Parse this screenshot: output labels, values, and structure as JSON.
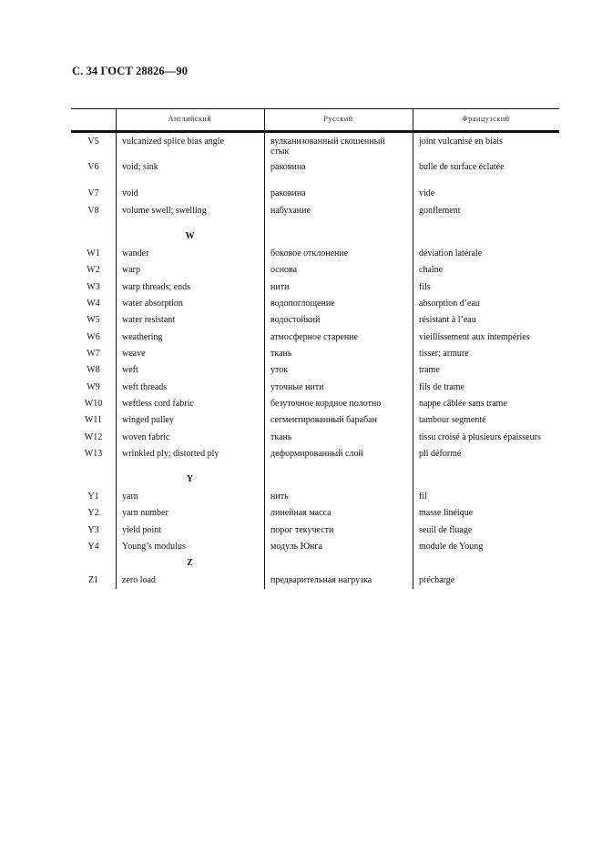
{
  "header": {
    "title": "С. 34 ГОСТ 28826—90"
  },
  "table": {
    "columns": [
      "",
      "Английский",
      "Русский",
      "Французский"
    ],
    "rows": [
      {
        "type": "entry",
        "code": "V5",
        "en": "vulcanized splice bias angle",
        "ru": "вулканизованный скошенный",
        "ru2": "стык",
        "fr": "joint vulcanisé en biais"
      },
      {
        "type": "entry",
        "code": "V6",
        "en": "void; sink",
        "ru": "раковина",
        "fr": "bulle de surface éclatée"
      },
      {
        "type": "entry",
        "code": "V7",
        "en": "void",
        "ru": "раковина",
        "fr": "vide"
      },
      {
        "type": "entry",
        "code": "V8",
        "en": "volume swell; swelling",
        "ru": "набухание",
        "fr": "gonflement"
      },
      {
        "type": "section",
        "label": "W"
      },
      {
        "type": "entry",
        "code": "W1",
        "en": "wander",
        "ru": "боковое отклонение",
        "fr": "déviation latérale"
      },
      {
        "type": "entry",
        "code": "W2",
        "en": "warp",
        "ru": "основа",
        "fr": "chaîne"
      },
      {
        "type": "entry",
        "code": "W3",
        "en": "warp threads; ends",
        "ru": "нити",
        "fr": "fils"
      },
      {
        "type": "entry",
        "code": "W4",
        "en": "water absorption",
        "ru": "водопоглощение",
        "fr": "absorption d’eau"
      },
      {
        "type": "entry",
        "code": "W5",
        "en": "water resistant",
        "ru": "водостойкий",
        "fr": "résistant à l’eau"
      },
      {
        "type": "entry",
        "code": "W6",
        "en": "weathering",
        "ru": "атмосферное старение",
        "fr": "vieillissement aux intempéries"
      },
      {
        "type": "entry",
        "code": "W7",
        "en": "weave",
        "ru": "ткань",
        "fr": "tisser; armure"
      },
      {
        "type": "entry",
        "code": "W8",
        "en": "weft",
        "ru": "уток",
        "fr": "trame"
      },
      {
        "type": "entry",
        "code": "W9",
        "en": "weft threads",
        "ru": "уточные нити",
        "fr": "fils de trame"
      },
      {
        "type": "entry",
        "code": "W10",
        "en": "weftless cord fabric",
        "ru": "безуточное кордное полотно",
        "fr": "nappe câblée sans trame"
      },
      {
        "type": "entry",
        "code": "W11",
        "en": "winged pulley",
        "ru": "сегментированный барабан",
        "fr": "tambour segmenté"
      },
      {
        "type": "entry",
        "code": "W12",
        "en": "woven fabric",
        "ru": "ткань",
        "fr": "tissu croisé à plusieurs épaisseurs"
      },
      {
        "type": "entry",
        "code": "W13",
        "en": "wrinkled ply; distorted ply",
        "ru": "деформированный слой",
        "fr": "pli déformé"
      },
      {
        "type": "section",
        "label": "Y"
      },
      {
        "type": "entry",
        "code": "Y1",
        "en": "yarn",
        "ru": "нить",
        "fr": "fil"
      },
      {
        "type": "entry",
        "code": "Y2",
        "en": "yarn number",
        "ru": "линейная масса",
        "fr": "masse linéique"
      },
      {
        "type": "entry",
        "code": "Y3",
        "en": "yield point",
        "ru": "порог текучести",
        "fr": "seuil de fluage"
      },
      {
        "type": "entry",
        "code": "Y4",
        "en": "Young’s modulus",
        "ru": "модуль Юнга",
        "fr": "module de Young"
      },
      {
        "type": "section",
        "label": "Z"
      },
      {
        "type": "entry",
        "code": "Z1",
        "en": "zero load",
        "ru": "предварительная нагрузка",
        "fr": "précharge"
      }
    ]
  }
}
